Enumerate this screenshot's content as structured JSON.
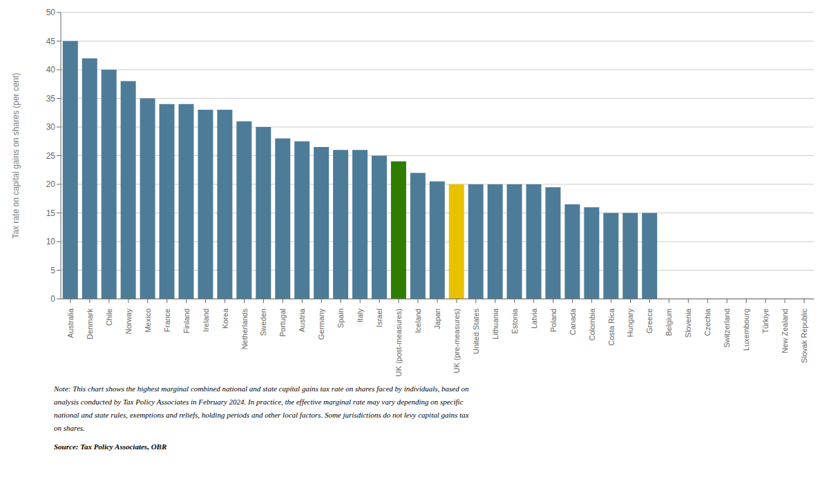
{
  "chart_data": {
    "type": "bar",
    "categories": [
      "Australia",
      "Denmark",
      "Chile",
      "Norway",
      "Mexico",
      "France",
      "Finland",
      "Ireland",
      "Korea",
      "Netherlands",
      "Sweden",
      "Portugal",
      "Austria",
      "Germany",
      "Spain",
      "Italy",
      "Israel",
      "UK (post-measures)",
      "Iceland",
      "Japan",
      "UK (pre-measures)",
      "United States",
      "Lithuania",
      "Estonia",
      "Latvia",
      "Poland",
      "Canada",
      "Colombia",
      "Costa Rica",
      "Hungary",
      "Greece",
      "Belgium",
      "Slovenia",
      "Czechia",
      "Switzerland",
      "Luxembourg",
      "Türkiye",
      "New Zealand",
      "Slovak Republic"
    ],
    "values": [
      45,
      42,
      40,
      38,
      35,
      34,
      34,
      33,
      33,
      31,
      30,
      28,
      27.5,
      26.5,
      26,
      26,
      25,
      24,
      22,
      20.5,
      20,
      20,
      20,
      20,
      20,
      19.5,
      16.5,
      16,
      15,
      15,
      15,
      0,
      0,
      0,
      0,
      0,
      0,
      0,
      0
    ],
    "colors": [
      "#4d7c99",
      "#4d7c99",
      "#4d7c99",
      "#4d7c99",
      "#4d7c99",
      "#4d7c99",
      "#4d7c99",
      "#4d7c99",
      "#4d7c99",
      "#4d7c99",
      "#4d7c99",
      "#4d7c99",
      "#4d7c99",
      "#4d7c99",
      "#4d7c99",
      "#4d7c99",
      "#4d7c99",
      "#2e7d00",
      "#4d7c99",
      "#4d7c99",
      "#e8c200",
      "#4d7c99",
      "#4d7c99",
      "#4d7c99",
      "#4d7c99",
      "#4d7c99",
      "#4d7c99",
      "#4d7c99",
      "#4d7c99",
      "#4d7c99",
      "#4d7c99",
      "#4d7c99",
      "#4d7c99",
      "#4d7c99",
      "#4d7c99",
      "#4d7c99",
      "#4d7c99",
      "#4d7c99",
      "#4d7c99"
    ],
    "ylabel": "Tax rate on capital gains on shares (per cent)",
    "ylim": [
      0,
      50
    ],
    "yticks": [
      0,
      5,
      10,
      15,
      20,
      25,
      30,
      35,
      40,
      45,
      50
    ],
    "grid": true,
    "annotations": [
      "Note: This chart shows the highest marginal combined national and state capital gains tax rate on shares faced by individuals, based on\nanalysis conducted by Tax Policy Associates in February 2024. In practice, the effective marginal rate may vary depending on specific\nnational and state rules, exemptions and reliefs, holding periods and other local factors. Some jurisdictions do not levy capital gains tax\non shares.",
      "Source: Tax Policy Associates, OBR"
    ]
  }
}
